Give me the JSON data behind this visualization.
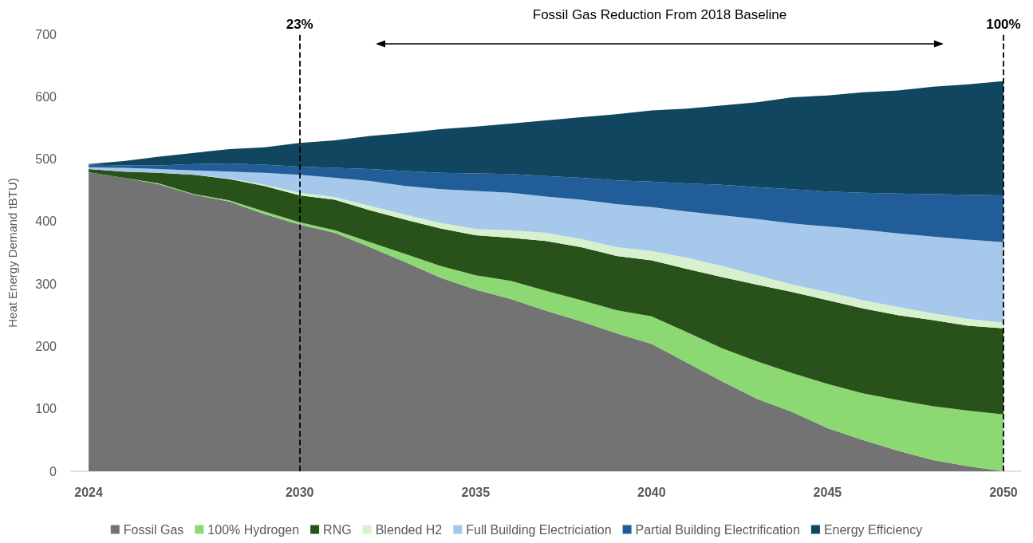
{
  "chart_data": {
    "type": "area",
    "stacked": true,
    "ylabel": "Heat Energy Demand tBTU)",
    "x": [
      2024,
      2025,
      2026,
      2027,
      2028,
      2029,
      2030,
      2031,
      2032,
      2033,
      2034,
      2035,
      2036,
      2037,
      2038,
      2039,
      2040,
      2041,
      2042,
      2043,
      2044,
      2045,
      2046,
      2047,
      2048,
      2049,
      2050
    ],
    "xlim": [
      2023.5,
      2050.5
    ],
    "xticks": [
      2024,
      2030,
      2035,
      2040,
      2045,
      2050
    ],
    "ylim": [
      0,
      700
    ],
    "yticks": [
      0,
      100,
      200,
      300,
      400,
      500,
      600,
      700
    ],
    "legend": "bottom",
    "series": [
      {
        "name": "Fossil Gas",
        "color": "#737373",
        "values": [
          479,
          470,
          460,
          443,
          432,
          412,
          395,
          382,
          359,
          335,
          310,
          291,
          276,
          257,
          240,
          221,
          204,
          174,
          144,
          116,
          95,
          69,
          50,
          33,
          18,
          8,
          0
        ]
      },
      {
        "name": "100% Hydrogen",
        "color": "#8cd872",
        "values": [
          null,
          0,
          1,
          1,
          2,
          4,
          4,
          4,
          8,
          13,
          19,
          23,
          29,
          32,
          34,
          37,
          44,
          49,
          53,
          60,
          62,
          71,
          75,
          81,
          86,
          89,
          91
        ]
      },
      {
        "name": "RNG",
        "color": "#285219",
        "values": [
          5,
          10,
          17,
          31,
          34,
          41,
          43,
          49,
          51,
          55,
          60,
          64,
          69,
          80,
          85,
          87,
          90,
          101,
          114,
          123,
          130,
          134,
          136,
          136,
          138,
          136,
          138
        ]
      },
      {
        "name": "Blended H2",
        "color": "#d7f1cf",
        "values": [
          0,
          0,
          0,
          0,
          1,
          2,
          4,
          4,
          7,
          8,
          9,
          10,
          12,
          13,
          13,
          14,
          15,
          18,
          18,
          15,
          12,
          13,
          13,
          13,
          11,
          11,
          9
        ]
      },
      {
        "name": "Full Building Electriciation",
        "color": "#a6c9eb",
        "values": [
          3,
          6,
          6,
          7,
          11,
          19,
          29,
          31,
          40,
          46,
          54,
          61,
          60,
          58,
          63,
          69,
          70,
          74,
          81,
          90,
          98,
          105,
          113,
          118,
          123,
          127,
          129
        ]
      },
      {
        "name": "Partial Building Electrification",
        "color": "#215e99",
        "values": [
          4,
          4,
          6,
          10,
          13,
          13,
          13,
          16,
          19,
          24,
          26,
          28,
          30,
          33,
          35,
          38,
          41,
          45,
          49,
          51,
          55,
          56,
          59,
          64,
          68,
          72,
          75
        ]
      },
      {
        "name": "Energy Efficiency",
        "color": "#10465f",
        "values": [
          1,
          7,
          14,
          18,
          23,
          28,
          38,
          44,
          53,
          61,
          70,
          75,
          81,
          89,
          97,
          106,
          114,
          120,
          127,
          136,
          147,
          154,
          161,
          165,
          172,
          177,
          183
        ]
      }
    ],
    "ref_lines": [
      {
        "axis": "x",
        "value": 2030,
        "line_style": "dashed",
        "color": "#000000"
      },
      {
        "axis": "x",
        "value": 2050,
        "line_style": "dashed",
        "color": "#000000"
      }
    ],
    "annotations": [
      "Fossil Gas Reduction From 2018 Baseline",
      "23%",
      "100%"
    ]
  }
}
